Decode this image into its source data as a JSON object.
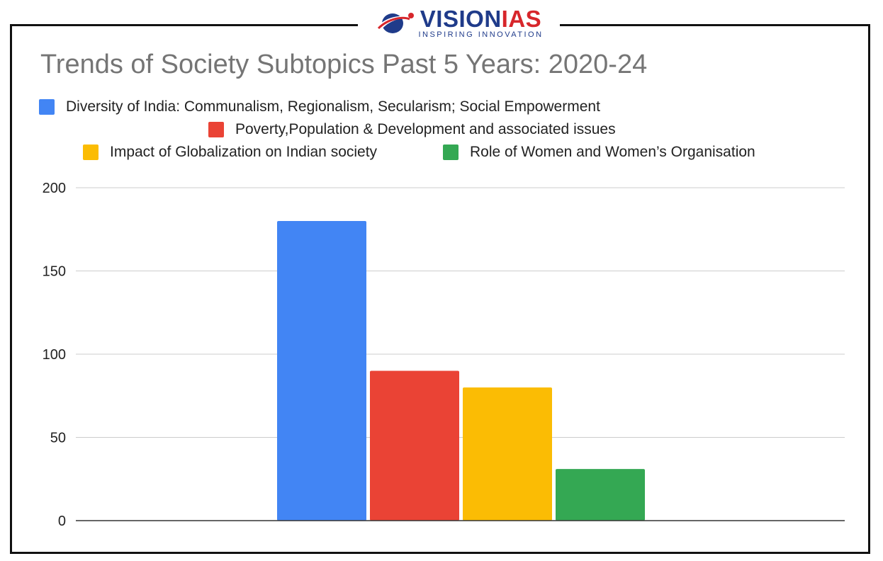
{
  "logo": {
    "name_part1": "VISION",
    "name_part2": "IAS",
    "tagline": "INSPIRING INNOVATION"
  },
  "colors": {
    "frame": "#111111",
    "title": "#757575",
    "grid": "#cccccc",
    "axis": "#333333"
  },
  "chart_data": {
    "type": "bar",
    "title": "Trends of Society Subtopics Past 5 Years: 2020-24",
    "categories": [
      ""
    ],
    "series": [
      {
        "name": "Diversity of India: Communalism, Regionalism, Secularism; Social Empowerment",
        "color": "#4285f4",
        "values": [
          180
        ]
      },
      {
        "name": "Poverty,Population & Development and associated issues",
        "color": "#ea4335",
        "values": [
          90
        ]
      },
      {
        "name": "Impact of Globalization on Indian society",
        "color": "#fbbc04",
        "values": [
          80
        ]
      },
      {
        "name": "Role of Women and Women’s Organisation",
        "color": "#34a853",
        "values": [
          31
        ]
      }
    ],
    "yticks": [
      "0",
      "50",
      "100",
      "150",
      "200"
    ],
    "ylim": [
      0,
      200
    ],
    "grid": true,
    "legend_position": "top"
  }
}
